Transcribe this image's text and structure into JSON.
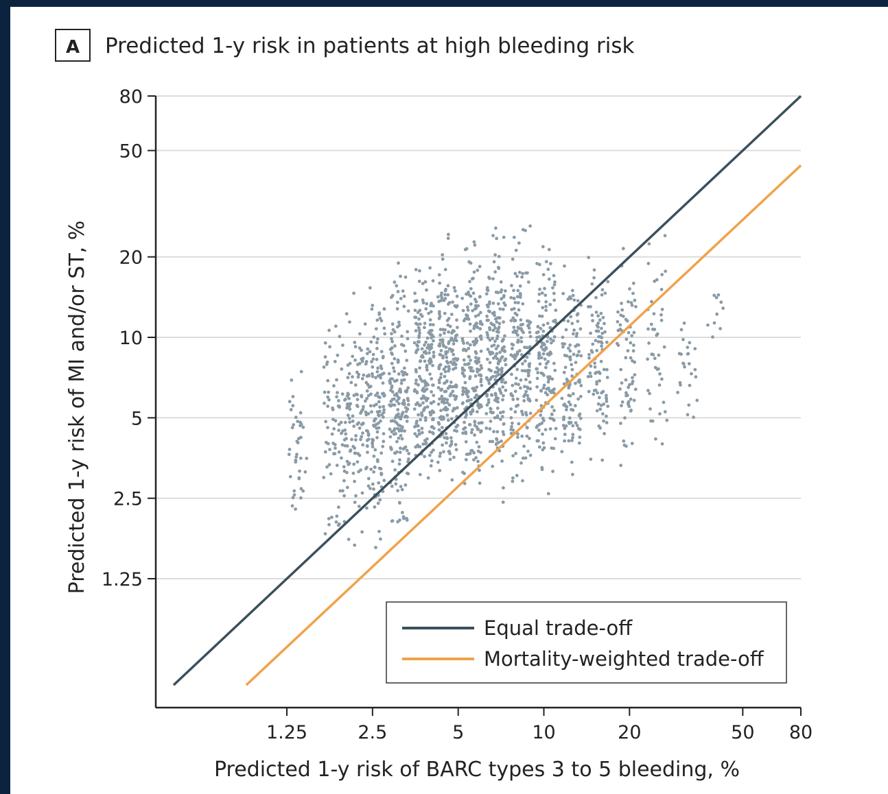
{
  "chart_data": {
    "type": "scatter",
    "panel_label": "A",
    "title": "Predicted 1-y risk in patients at high bleeding risk",
    "xlabel": "Predicted 1-y risk of BARC types 3 to 5 bleeding, %",
    "ylabel": "Predicted 1-y risk of MI and/or ST, %",
    "x_scale": "log",
    "y_scale": "log",
    "xlim": [
      0.45,
      80
    ],
    "ylim": [
      0.45,
      80
    ],
    "x_ticks": [
      1.25,
      2.5,
      5,
      10,
      20,
      50,
      80
    ],
    "x_tick_labels": [
      "1.25",
      "2.5",
      "5",
      "10",
      "20",
      "50",
      "80"
    ],
    "y_ticks": [
      1.25,
      2.5,
      5,
      10,
      20,
      50,
      80
    ],
    "y_tick_labels": [
      "1.25",
      "2.5",
      "5",
      "10",
      "20",
      "50",
      "80"
    ],
    "grid": {
      "horizontal": true,
      "vertical": false
    },
    "colors": {
      "points": "#8a9ba6",
      "equal": "#3b4f5c",
      "mortality": "#f0a24a"
    },
    "series": [
      {
        "name": "Equal trade-off",
        "kind": "line",
        "x": [
          0.5,
          80
        ],
        "y": [
          0.5,
          80
        ]
      },
      {
        "name": "Mortality-weighted trade-off",
        "kind": "line",
        "x": [
          0.9,
          80
        ],
        "y": [
          0.5,
          44
        ]
      }
    ],
    "scatter": {
      "description": "Patient-level predicted risks",
      "clusters": [
        {
          "x": 1.36,
          "y_range": [
            1.4,
            9.5
          ],
          "n": 40
        },
        {
          "x": 1.82,
          "y_range": [
            1.35,
            16
          ],
          "n": 70
        },
        {
          "x": 2.15,
          "y_range": [
            1.35,
            19
          ],
          "n": 110
        },
        {
          "x": 2.55,
          "y_range": [
            1.35,
            21
          ],
          "n": 150
        },
        {
          "x": 3.1,
          "y_range": [
            1.4,
            23
          ],
          "n": 180
        },
        {
          "x": 3.8,
          "y_range": [
            1.8,
            25
          ],
          "n": 200
        },
        {
          "x": 4.6,
          "y_range": [
            1.9,
            29
          ],
          "n": 210
        },
        {
          "x": 5.6,
          "y_range": [
            1.9,
            32
          ],
          "n": 210
        },
        {
          "x": 6.8,
          "y_range": [
            2.0,
            34
          ],
          "n": 200
        },
        {
          "x": 8.3,
          "y_range": [
            2.0,
            34
          ],
          "n": 170
        },
        {
          "x": 10.2,
          "y_range": [
            2.2,
            31
          ],
          "n": 150
        },
        {
          "x": 12.5,
          "y_range": [
            2.3,
            27
          ],
          "n": 110
        },
        {
          "x": 15.5,
          "y_range": [
            2.5,
            25
          ],
          "n": 90
        },
        {
          "x": 19.5,
          "y_range": [
            2.6,
            25
          ],
          "n": 70
        },
        {
          "x": 25,
          "y_range": [
            2.5,
            30
          ],
          "n": 45
        },
        {
          "x": 32,
          "y_range": [
            3.0,
            18
          ],
          "n": 25
        },
        {
          "x": 40,
          "y_range": [
            7,
            23
          ],
          "n": 10
        }
      ]
    },
    "legend": {
      "position": "bottom-right"
    }
  }
}
